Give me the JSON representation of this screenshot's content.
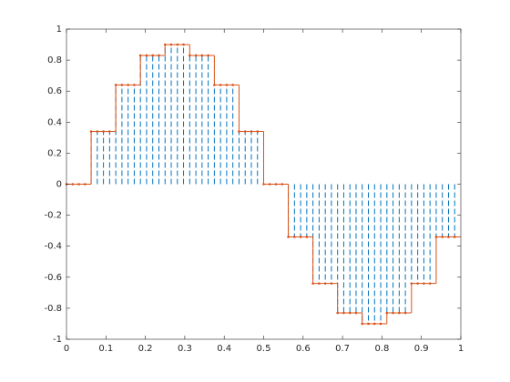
{
  "chart_data": {
    "type": "stem",
    "x": [
      0,
      0.015625,
      0.03125,
      0.046875,
      0.0625,
      0.078125,
      0.09375,
      0.109375,
      0.125,
      0.140625,
      0.15625,
      0.171875,
      0.1875,
      0.203125,
      0.21875,
      0.234375,
      0.25,
      0.265625,
      0.28125,
      0.296875,
      0.3125,
      0.328125,
      0.34375,
      0.359375,
      0.375,
      0.390625,
      0.40625,
      0.421875,
      0.4375,
      0.453125,
      0.46875,
      0.484375,
      0.5,
      0.515625,
      0.53125,
      0.546875,
      0.5625,
      0.578125,
      0.59375,
      0.609375,
      0.625,
      0.640625,
      0.65625,
      0.671875,
      0.6875,
      0.703125,
      0.71875,
      0.734375,
      0.75,
      0.765625,
      0.78125,
      0.796875,
      0.8125,
      0.828125,
      0.84375,
      0.859375,
      0.875,
      0.890625,
      0.90625,
      0.921875,
      0.9375,
      0.953125,
      0.96875,
      0.984375
    ],
    "series": [
      {
        "style": "stem",
        "color": "#0072bd",
        "marker_color": "#d95319",
        "values": [
          0,
          0,
          0,
          0,
          0.34,
          0.34,
          0.34,
          0.34,
          0.64,
          0.64,
          0.64,
          0.64,
          0.83,
          0.83,
          0.83,
          0.83,
          0.9,
          0.9,
          0.9,
          0.9,
          0.83,
          0.83,
          0.83,
          0.83,
          0.64,
          0.64,
          0.64,
          0.64,
          0.34,
          0.34,
          0.34,
          0.34,
          0,
          0,
          0,
          0,
          -0.34,
          -0.34,
          -0.34,
          -0.34,
          -0.64,
          -0.64,
          -0.64,
          -0.64,
          -0.83,
          -0.83,
          -0.83,
          -0.83,
          -0.9,
          -0.9,
          -0.9,
          -0.9,
          -0.83,
          -0.83,
          -0.83,
          -0.83,
          -0.64,
          -0.64,
          -0.64,
          -0.64,
          -0.34,
          -0.34,
          -0.34,
          -0.34
        ]
      },
      {
        "style": "stairs",
        "color": "#d95319",
        "values": [
          0,
          0,
          0,
          0,
          0.34,
          0.34,
          0.34,
          0.34,
          0.64,
          0.64,
          0.64,
          0.64,
          0.83,
          0.83,
          0.83,
          0.83,
          0.9,
          0.9,
          0.9,
          0.9,
          0.83,
          0.83,
          0.83,
          0.83,
          0.64,
          0.64,
          0.64,
          0.64,
          0.34,
          0.34,
          0.34,
          0.34,
          0,
          0,
          0,
          0,
          -0.34,
          -0.34,
          -0.34,
          -0.34,
          -0.64,
          -0.64,
          -0.64,
          -0.64,
          -0.83,
          -0.83,
          -0.83,
          -0.83,
          -0.9,
          -0.9,
          -0.9,
          -0.9,
          -0.83,
          -0.83,
          -0.83,
          -0.83,
          -0.64,
          -0.64,
          -0.64,
          -0.64,
          -0.34,
          -0.34,
          -0.34,
          -0.34
        ]
      }
    ],
    "xlim": [
      0,
      1
    ],
    "xticks": [
      0,
      0.1,
      0.2,
      0.3,
      0.4,
      0.5,
      0.6,
      0.7,
      0.8,
      0.9,
      1
    ],
    "ylim": [
      -1,
      1
    ],
    "yticks": [
      -1,
      -0.8,
      -0.6,
      -0.4,
      -0.2,
      0,
      0.2,
      0.4,
      0.6,
      0.8,
      1
    ]
  }
}
